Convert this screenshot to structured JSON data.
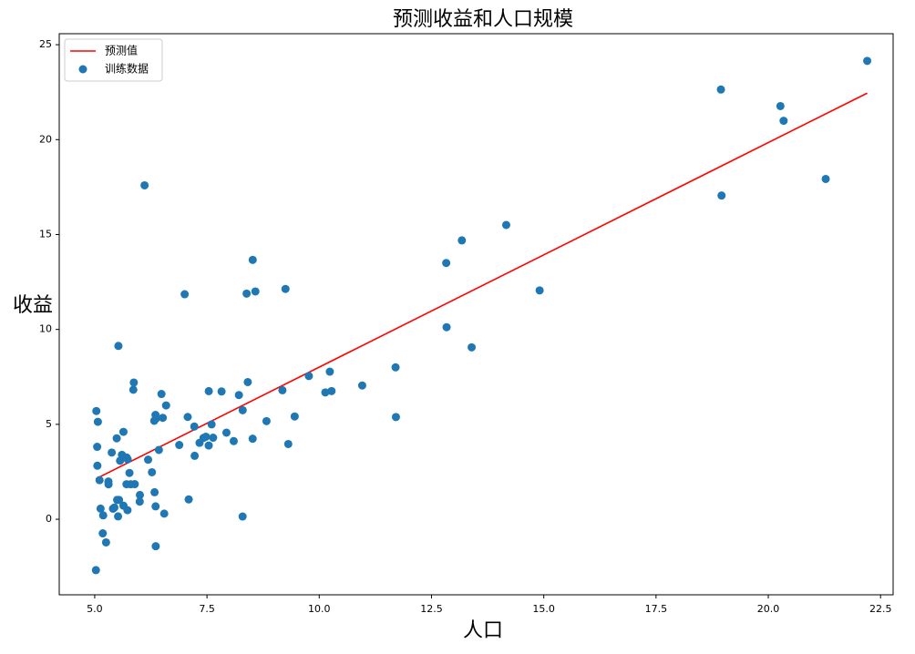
{
  "chart_data": {
    "type": "scatter",
    "title": "预测收益和人口规模",
    "x_label": "人口",
    "y_label": "收益",
    "legend_position": "upper left",
    "xlim": [
      4.21,
      22.78
    ],
    "ylim": [
      -3.98,
      25.58
    ],
    "xticks": [
      {
        "value": 5,
        "label": "5.0"
      },
      {
        "value": 7.5,
        "label": "7.5"
      },
      {
        "value": 10,
        "label": "10.0"
      },
      {
        "value": 12.5,
        "label": "12.5"
      },
      {
        "value": 15,
        "label": "15.0"
      },
      {
        "value": 17.5,
        "label": "17.5"
      },
      {
        "value": 20,
        "label": "20.0"
      },
      {
        "value": 22.5,
        "label": "22.5"
      }
    ],
    "yticks": [
      0,
      5,
      10,
      15,
      20,
      25
    ],
    "line": {
      "name": "预测值",
      "color": "#ff0000",
      "x": [
        5.0269,
        22.203
      ],
      "y": [
        2.13,
        22.45
      ]
    },
    "series": [
      {
        "name": "训练数据",
        "color": "#1f77b4",
        "x": [
          6.1101,
          5.5277,
          8.5186,
          7.0032,
          5.8598,
          8.3829,
          7.4764,
          8.5781,
          6.4862,
          5.0546,
          5.7107,
          14.164,
          5.734,
          8.4084,
          5.6407,
          5.3794,
          6.3654,
          5.1301,
          6.4296,
          7.0708,
          6.1891,
          20.27,
          5.4901,
          6.3261,
          5.5649,
          18.945,
          12.828,
          10.957,
          13.176,
          22.203,
          5.2524,
          6.5894,
          9.2482,
          5.8918,
          8.2111,
          7.9334,
          8.0959,
          5.6063,
          12.836,
          6.3534,
          5.4069,
          6.8825,
          11.708,
          5.7737,
          7.8247,
          7.0931,
          5.0702,
          5.8014,
          11.7,
          5.5416,
          7.5402,
          5.3077,
          7.4239,
          7.6031,
          6.3328,
          6.3589,
          6.2742,
          5.6397,
          9.3102,
          9.4536,
          8.8254,
          5.1793,
          21.279,
          14.908,
          18.959,
          7.2182,
          8.2951,
          10.236,
          5.4994,
          20.341,
          10.136,
          7.3345,
          6.0062,
          7.2259,
          5.0269,
          6.5479,
          7.5386,
          5.0365,
          10.274,
          5.1077,
          5.7292,
          5.1884,
          6.3557,
          9.7687,
          6.5159,
          8.5172,
          9.1802,
          6.002,
          5.5204,
          5.0594,
          5.7077,
          7.6366,
          5.8707,
          5.3054,
          8.2934,
          13.394,
          5.4369
        ],
        "values": [
          17.592,
          9.1302,
          13.662,
          11.854,
          6.8233,
          11.886,
          4.3483,
          12,
          6.5987,
          3.8166,
          3.2522,
          15.505,
          3.1551,
          7.2258,
          0.71618,
          3.5129,
          5.3048,
          0.56077,
          3.6518,
          5.3893,
          3.1386,
          21.767,
          4.263,
          5.1875,
          3.0825,
          22.638,
          13.501,
          7.0467,
          14.692,
          24.147,
          -1.22,
          5.9966,
          12.134,
          1.8495,
          6.5426,
          4.5623,
          4.1164,
          3.3928,
          10.117,
          5.4974,
          0.55657,
          3.9115,
          5.3854,
          2.4406,
          6.7318,
          1.0463,
          5.1337,
          1.844,
          8.0043,
          1.0179,
          6.7504,
          1.8396,
          4.2885,
          4.9981,
          1.4233,
          -1.4211,
          2.4756,
          4.6042,
          3.9624,
          5.4141,
          5.1694,
          -0.74279,
          17.929,
          12.054,
          17.054,
          4.8852,
          5.7442,
          7.7754,
          1.0173,
          20.992,
          6.6799,
          4.0259,
          1.2784,
          3.3411,
          -2.6807,
          0.29678,
          3.8845,
          5.7014,
          6.7526,
          2.0576,
          0.47953,
          0.20421,
          0.67861,
          7.5435,
          5.3436,
          4.2415,
          6.7981,
          0.92695,
          0.152,
          2.8214,
          1.8451,
          4.2959,
          7.2029,
          1.9869,
          0.14454,
          9.0551,
          0.61705
        ]
      }
    ]
  }
}
